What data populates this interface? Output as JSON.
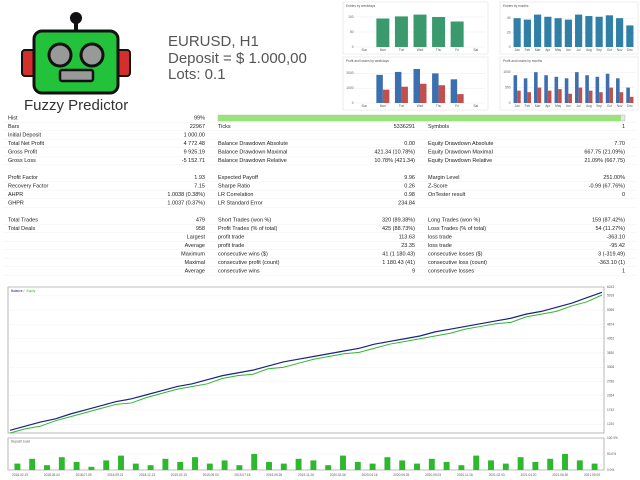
{
  "header": {
    "brand": "Fuzzy Predictor",
    "lines": [
      "EURUSD, H1",
      "Deposit = $ 1.000,00",
      "Lots: 0.1"
    ]
  },
  "mini_charts": [
    {
      "title": "Entries by weekdays",
      "categories": [
        "Sun",
        "Mon",
        "Tue",
        "Wed",
        "Thu",
        "Fri",
        "Sat"
      ],
      "ylim": [
        0,
        120
      ],
      "yticks": [
        0,
        50,
        100
      ],
      "series": [
        {
          "color": "#3a9a6e",
          "values": [
            0,
            95,
            102,
            108,
            100,
            85,
            0
          ]
        }
      ]
    },
    {
      "title": "Entries by months",
      "categories": [
        "Jan",
        "Feb",
        "Mar",
        "Apr",
        "May",
        "Jun",
        "Jul",
        "Aug",
        "Sep",
        "Oct",
        "Nov",
        "Dec"
      ],
      "ylim": [
        0,
        50
      ],
      "yticks": [
        0,
        20,
        40
      ],
      "series": [
        {
          "color": "#2f7fa6",
          "values": [
            40,
            38,
            45,
            42,
            40,
            38,
            45,
            43,
            42,
            44,
            40,
            30
          ]
        }
      ]
    },
    {
      "title": "Profit and losses by weekdays",
      "categories": [
        "Sun",
        "Mon",
        "Tue",
        "Wed",
        "Thu",
        "Fri",
        "Sat"
      ],
      "ylim": [
        0,
        2500
      ],
      "yticks": [
        0,
        1000,
        2000
      ],
      "series": [
        {
          "color": "#3c6fb0",
          "values": [
            0,
            1900,
            2100,
            2300,
            2000,
            1600,
            0
          ]
        },
        {
          "color": "#c0504d",
          "values": [
            0,
            900,
            1100,
            1300,
            1200,
            600,
            0
          ]
        }
      ]
    },
    {
      "title": "Profit and losses by months",
      "categories": [
        "Jan",
        "Feb",
        "Mar",
        "Apr",
        "May",
        "Jun",
        "Jul",
        "Aug",
        "Sep",
        "Oct",
        "Nov",
        "Dec"
      ],
      "ylim": [
        0,
        1200
      ],
      "yticks": [
        0,
        500,
        1000
      ],
      "series": [
        {
          "color": "#3c6fb0",
          "values": [
            900,
            800,
            1000,
            900,
            850,
            800,
            1000,
            900,
            850,
            950,
            800,
            500
          ]
        },
        {
          "color": "#c0504d",
          "values": [
            400,
            350,
            500,
            400,
            450,
            300,
            500,
            400,
            350,
            500,
            350,
            200
          ]
        }
      ]
    }
  ],
  "history_quality": 99,
  "report": {
    "groups": [
      [
        [
          [
            "Hist",
            "99%"
          ]
        ],
        [
          [
            "Bars",
            "22967"
          ],
          [
            "Ticks",
            "5336291"
          ],
          [
            "Symbols",
            "1"
          ]
        ],
        [
          [
            "Initial Deposit",
            "1 000.00"
          ]
        ],
        [
          [
            "Total Net Profit",
            "4 772.48"
          ],
          [
            "Balance Drawdown Absolute",
            "0.00"
          ],
          [
            "Equity Drawdown Absolute",
            "7.70"
          ]
        ],
        [
          [
            "Gross Profit",
            "9 925.19"
          ],
          [
            "Balance Drawdown Maximal",
            "421.34 (10.78%)"
          ],
          [
            "Equity Drawdown Maximal",
            "667.75 (21.09%)"
          ]
        ],
        [
          [
            "Gross Loss",
            "-5 152.71"
          ],
          [
            "Balance Drawdown Relative",
            "10.78% (421.34)"
          ],
          [
            "Equity Drawdown Relative",
            "21.09% (667.75)"
          ]
        ]
      ],
      [
        [
          [
            "Profit Factor",
            "1.93"
          ],
          [
            "Expected Payoff",
            "9.96"
          ],
          [
            "Margin Level",
            "251.00%"
          ]
        ],
        [
          [
            "Recovery Factor",
            "7.15"
          ],
          [
            "Sharpe Ratio",
            "0.26"
          ],
          [
            "Z-Score",
            "-0.99 (67.76%)"
          ]
        ],
        [
          [
            "AHPR",
            "1.0038 (0.38%)"
          ],
          [
            "LR Correlation",
            "0.98"
          ],
          [
            "OnTester result",
            "0"
          ]
        ],
        [
          [
            "GHPR",
            "1.0037 (0.37%)"
          ],
          [
            "LR Standard Error",
            "234.84"
          ]
        ]
      ],
      [
        [
          [
            "Total Trades",
            "479"
          ],
          [
            "Short Trades (won %)",
            "320 (89.38%)"
          ],
          [
            "Long Trades (won %)",
            "159 (87.42%)"
          ]
        ],
        [
          [
            "Total Deals",
            "958"
          ],
          [
            "Profit Trades (% of total)",
            "425 (88.73%)"
          ],
          [
            "Loss Trades (% of total)",
            "54 (11.27%)"
          ]
        ],
        [
          [
            "Largest"
          ],
          [
            "profit trade",
            "113.63"
          ],
          [
            "loss trade",
            "-363.10"
          ]
        ],
        [
          [
            "Average"
          ],
          [
            "profit trade",
            "23.35"
          ],
          [
            "loss trade",
            "-95.42"
          ]
        ],
        [
          [
            "Maximum"
          ],
          [
            "consecutive wins ($)",
            "41 (1 180.43)"
          ],
          [
            "consecutive losses ($)",
            "3 (-319.49)"
          ]
        ],
        [
          [
            "Maximal"
          ],
          [
            "consecutive profit (count)",
            "1 180.43 (41)"
          ],
          [
            "consecutive loss (count)",
            "-363.10 (1)"
          ]
        ],
        [
          [
            "Average"
          ],
          [
            "consecutive wins",
            "9"
          ],
          [
            "consecutive losses",
            "1"
          ]
        ]
      ]
    ]
  },
  "balance_chart": {
    "type": "line",
    "ylim": [
      900,
      6243
    ],
    "yticks": [
      1220,
      1742,
      2264,
      2786,
      3308,
      3830,
      4352,
      4874,
      5396,
      5918,
      6243
    ],
    "series": [
      {
        "name": "Balance",
        "color": "#1a237e",
        "values": [
          1000,
          1150,
          1300,
          1420,
          1600,
          1750,
          1900,
          2050,
          2150,
          2300,
          2450,
          2600,
          2700,
          2850,
          3000,
          3100,
          3200,
          3350,
          3500,
          3600,
          3700,
          3800,
          3900,
          4000,
          4150,
          4250,
          4350,
          4450,
          4600,
          4700,
          4800,
          4900,
          5000,
          5100,
          5250,
          5350,
          5500,
          5650,
          5850,
          6050
        ]
      },
      {
        "name": "Equity",
        "color": "#2eb82e",
        "values": [
          900,
          1050,
          1150,
          1350,
          1500,
          1650,
          1800,
          1950,
          2000,
          2200,
          2350,
          2500,
          2600,
          2700,
          2900,
          3000,
          3050,
          3250,
          3300,
          3450,
          3600,
          3700,
          3800,
          3850,
          4000,
          4150,
          4250,
          4350,
          4450,
          4550,
          4700,
          4800,
          4900,
          4950,
          5150,
          5250,
          5350,
          5550,
          5700,
          5950
        ]
      }
    ],
    "x_tick_labels": [
      "2018.02.19",
      "2018.05.04",
      "2018.07.09",
      "2018.09.21",
      "2018.12.13",
      "2019.02.19",
      "2019.05.03",
      "2019.07.18",
      "2019.09.26",
      "2019.11.26",
      "2020.02.06",
      "2020.04.16",
      "2020.06.25",
      "2020.09.03",
      "2020.11.16",
      "2021.02.03",
      "2021.04.20",
      "2021.06.30",
      "2021.09.09"
    ]
  },
  "deposit_load": {
    "type": "bar",
    "title": "Deposit Load",
    "color": "#2eb82e",
    "ylim": [
      0,
      100
    ],
    "yticks": [
      {
        "value": 0,
        "label": "0.0%"
      },
      {
        "value": 50,
        "label": "50.0%"
      },
      {
        "value": 100,
        "label": "100.0%"
      }
    ],
    "values": [
      20,
      35,
      15,
      40,
      25,
      10,
      30,
      45,
      20,
      15,
      35,
      25,
      40,
      20,
      30,
      15,
      50,
      25,
      20,
      35,
      30,
      15,
      45,
      25,
      20,
      40,
      30,
      20,
      35,
      25,
      15,
      45,
      30,
      20,
      40,
      25,
      35,
      50,
      30,
      20
    ]
  }
}
